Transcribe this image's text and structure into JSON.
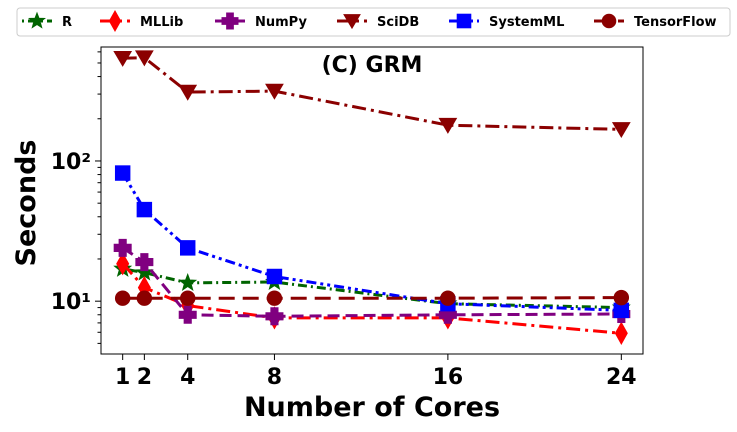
{
  "chart_data": {
    "type": "line",
    "title": "(C) GRM",
    "xlabel": "Number of Cores",
    "ylabel": "Seconds",
    "x": [
      1,
      2,
      4,
      8,
      16,
      24
    ],
    "xticks": [
      1,
      2,
      4,
      8,
      16,
      24
    ],
    "xtick_labels": [
      "1",
      "2",
      "4",
      "8",
      "16",
      "24"
    ],
    "xlim": [
      0,
      25
    ],
    "yscale": "log",
    "ylim": [
      4.2,
      650
    ],
    "yticks": [
      10,
      100
    ],
    "ytick_labels": [
      "10¹",
      "10²"
    ],
    "grid": false,
    "legend_position": "top, above plot",
    "series": [
      {
        "name": "R",
        "color": "#006400",
        "dash": "dotted-dash",
        "marker": "star",
        "values": [
          17,
          16,
          13.5,
          13.7,
          9.6,
          9.0
        ]
      },
      {
        "name": "MLLib",
        "color": "#ff0000",
        "dash": "dash-dot",
        "marker": "diamond",
        "values": [
          18.5,
          12.5,
          9.3,
          7.6,
          7.6,
          5.9
        ]
      },
      {
        "name": "NumPy",
        "color": "#800080",
        "dash": "dashed",
        "marker": "plus",
        "values": [
          24,
          19,
          8.0,
          7.8,
          8.0,
          8.1
        ]
      },
      {
        "name": "SciDB",
        "color": "#8b0000",
        "dash": "dash-dot",
        "marker": "triangle-down",
        "values": [
          540,
          545,
          310,
          315,
          180,
          168
        ]
      },
      {
        "name": "SystemML",
        "color": "#0000ff",
        "dash": "dash-dot-dot",
        "marker": "square",
        "values": [
          82,
          45,
          24,
          15,
          9.6,
          8.6
        ]
      },
      {
        "name": "TensorFlow",
        "color": "#8b0000",
        "dash": "long-dash",
        "marker": "circle",
        "values": [
          10.5,
          10.5,
          10.5,
          10.5,
          10.5,
          10.6
        ]
      }
    ]
  }
}
